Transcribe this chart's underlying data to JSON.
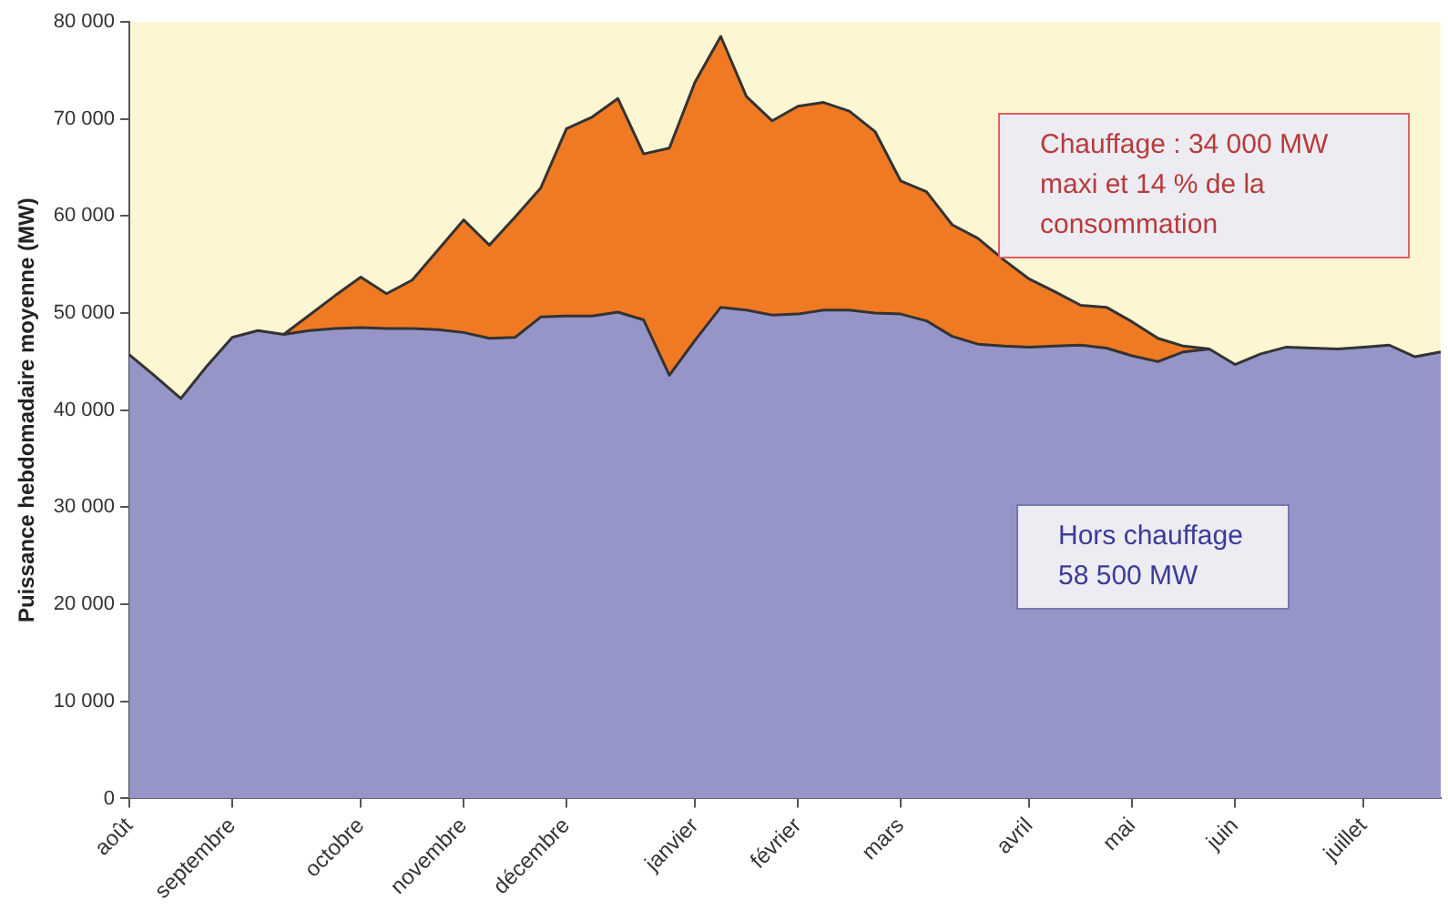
{
  "chart_data": {
    "type": "area",
    "ylabel": "Puissance hebdomadaire moyenne (MW)",
    "categories": [
      "août",
      null,
      null,
      null,
      "septembre",
      null,
      null,
      null,
      null,
      "octobre",
      null,
      null,
      null,
      "novembre",
      null,
      null,
      null,
      "décembre",
      null,
      null,
      null,
      null,
      "janvier",
      null,
      null,
      null,
      "février",
      null,
      null,
      null,
      "mars",
      null,
      null,
      null,
      null,
      "avril",
      null,
      null,
      null,
      "mai",
      null,
      null,
      null,
      "juin",
      null,
      null,
      null,
      null,
      "juillet",
      null,
      null,
      null
    ],
    "ylim": [
      0,
      80000
    ],
    "yticks": [
      0,
      {
        "value": 10000,
        "label": "10 000"
      },
      {
        "value": 20000,
        "label": "20 000"
      },
      {
        "value": 30000,
        "label": "30 000"
      },
      {
        "value": 40000,
        "label": "40 000"
      },
      {
        "value": 50000,
        "label": "50 000"
      },
      {
        "value": 60000,
        "label": "60 000"
      },
      {
        "value": 70000,
        "label": "70 000"
      },
      {
        "value": 80000,
        "label": "80 000"
      }
    ],
    "series": [
      {
        "color": "#9595c8",
        "values": [
          45700,
          43500,
          41200,
          44500,
          47500,
          48200,
          47800,
          48200,
          48400,
          48500,
          48400,
          48400,
          48300,
          48000,
          47400,
          47500,
          49600,
          49700,
          49700,
          50100,
          49300,
          43600,
          47200,
          50600,
          50300,
          49800,
          49900,
          50300,
          50300,
          50000,
          49900,
          49200,
          47600,
          46800,
          46600,
          46500,
          46600,
          46700,
          46400,
          45600,
          45000,
          46000,
          46300,
          44700,
          45800,
          46500,
          46400,
          46300,
          46500,
          46700,
          45500,
          46000
        ]
      },
      {
        "color": "#f07a24",
        "values": [
          null,
          null,
          null,
          null,
          null,
          null,
          47800,
          49800,
          51800,
          53700,
          52000,
          53400,
          56500,
          59600,
          57000,
          59900,
          62900,
          69000,
          70200,
          72100,
          66400,
          67000,
          73800,
          78500,
          72300,
          69800,
          71300,
          71700,
          70800,
          68700,
          63600,
          62500,
          59100,
          57700,
          55500,
          53500,
          52200,
          50800,
          50600,
          49100,
          47400,
          46600,
          46300,
          null,
          null,
          null,
          null,
          null,
          null,
          null,
          null,
          null
        ]
      }
    ],
    "annotations": [
      "Chauffage : 34 000 MW maxi et 14 % de la consommation",
      "Hors chauffage 58 500 MW"
    ],
    "grid": false,
    "legend": false
  }
}
